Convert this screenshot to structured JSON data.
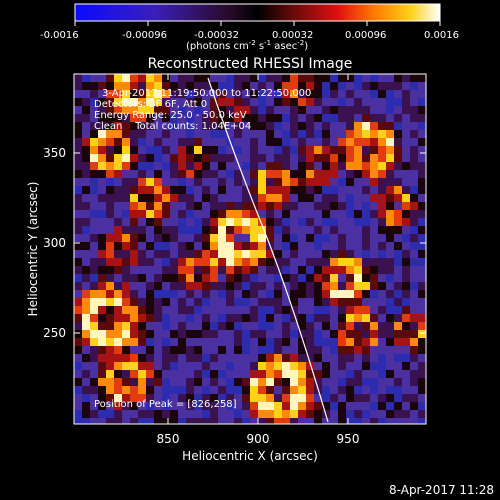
{
  "colorbar": {
    "ticks": [
      "-0.0016",
      "-0.00096",
      "-0.00032",
      "0.00032",
      "0.00096",
      "0.0016"
    ],
    "units_base": "(photons cm",
    "units_exp1": "-2",
    "units_mid": " s",
    "units_exp2": "-1",
    "units_end": " asec",
    "units_exp3": "-2",
    "units_close": ")"
  },
  "plot": {
    "title": "Reconstructed RHESSI Image",
    "xlabel": "Heliocentric X (arcsec)",
    "ylabel": "Heliocentric Y (arcsec)",
    "xticks": [
      "850",
      "900",
      "950"
    ],
    "yticks": [
      "350",
      "300",
      "250"
    ]
  },
  "annotation": {
    "time": "3-Apr-2017 11:19:50.000 to 11:22:50.000",
    "detectors": "Detectors: 3F 6F, Att 0",
    "energy": "Energy Range: 25.0 - 50.0 keV",
    "clean": "Clean    Total counts: 1.04E+04",
    "peak": "Position of Peak = [826,258]"
  },
  "footer": {
    "date": "8-Apr-2017 11:28"
  },
  "colors": {
    "background": "#000000",
    "limb_line": "#ffffff"
  }
}
